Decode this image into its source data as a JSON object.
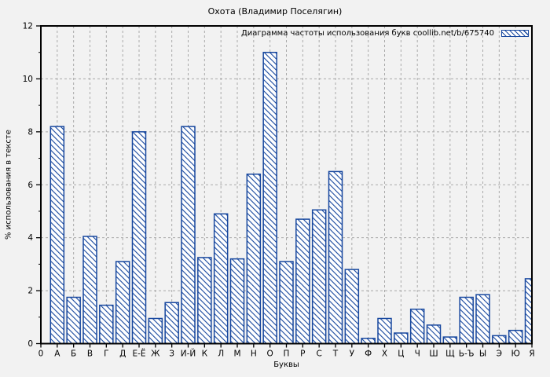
{
  "colors": {
    "background": "#f2f2f2",
    "bar_outline": "#17479e",
    "bar_fill": "#ffffff",
    "grid": "#a9a9a9",
    "axis": "#000000",
    "text": "#000000"
  },
  "chart_data": {
    "type": "bar",
    "title": "Охота (Владимир Поселягин)",
    "legend": "Диаграмма частоты использования букв coollib.net/b/675740",
    "legend_position": "top-right",
    "xlabel": "Буквы",
    "ylabel": "% использования в тексте",
    "origin_label": "0",
    "categories": [
      "А",
      "Б",
      "В",
      "Г",
      "Д",
      "Е-Ё",
      "Ж",
      "З",
      "И-Й",
      "К",
      "Л",
      "М",
      "Н",
      "О",
      "П",
      "Р",
      "С",
      "Т",
      "У",
      "Ф",
      "Х",
      "Ц",
      "Ч",
      "Ш",
      "Щ",
      "Ь-Ъ",
      "Ы",
      "Э",
      "Ю",
      "Я"
    ],
    "values": [
      8.2,
      1.75,
      4.05,
      1.45,
      3.1,
      8.0,
      0.95,
      1.55,
      8.2,
      3.25,
      4.9,
      3.2,
      6.4,
      11.0,
      3.1,
      4.7,
      5.05,
      6.5,
      2.8,
      0.2,
      0.95,
      0.4,
      1.3,
      0.7,
      0.25,
      1.75,
      1.85,
      0.3,
      0.5,
      2.45
    ],
    "ylim": [
      0,
      12
    ],
    "y_major_ticks": [
      0,
      2,
      4,
      6,
      8,
      10,
      12
    ],
    "y_minor_ticks": [
      1,
      3,
      5,
      7,
      9,
      11
    ],
    "grid": true,
    "hatch": "diagonal-backslash"
  }
}
